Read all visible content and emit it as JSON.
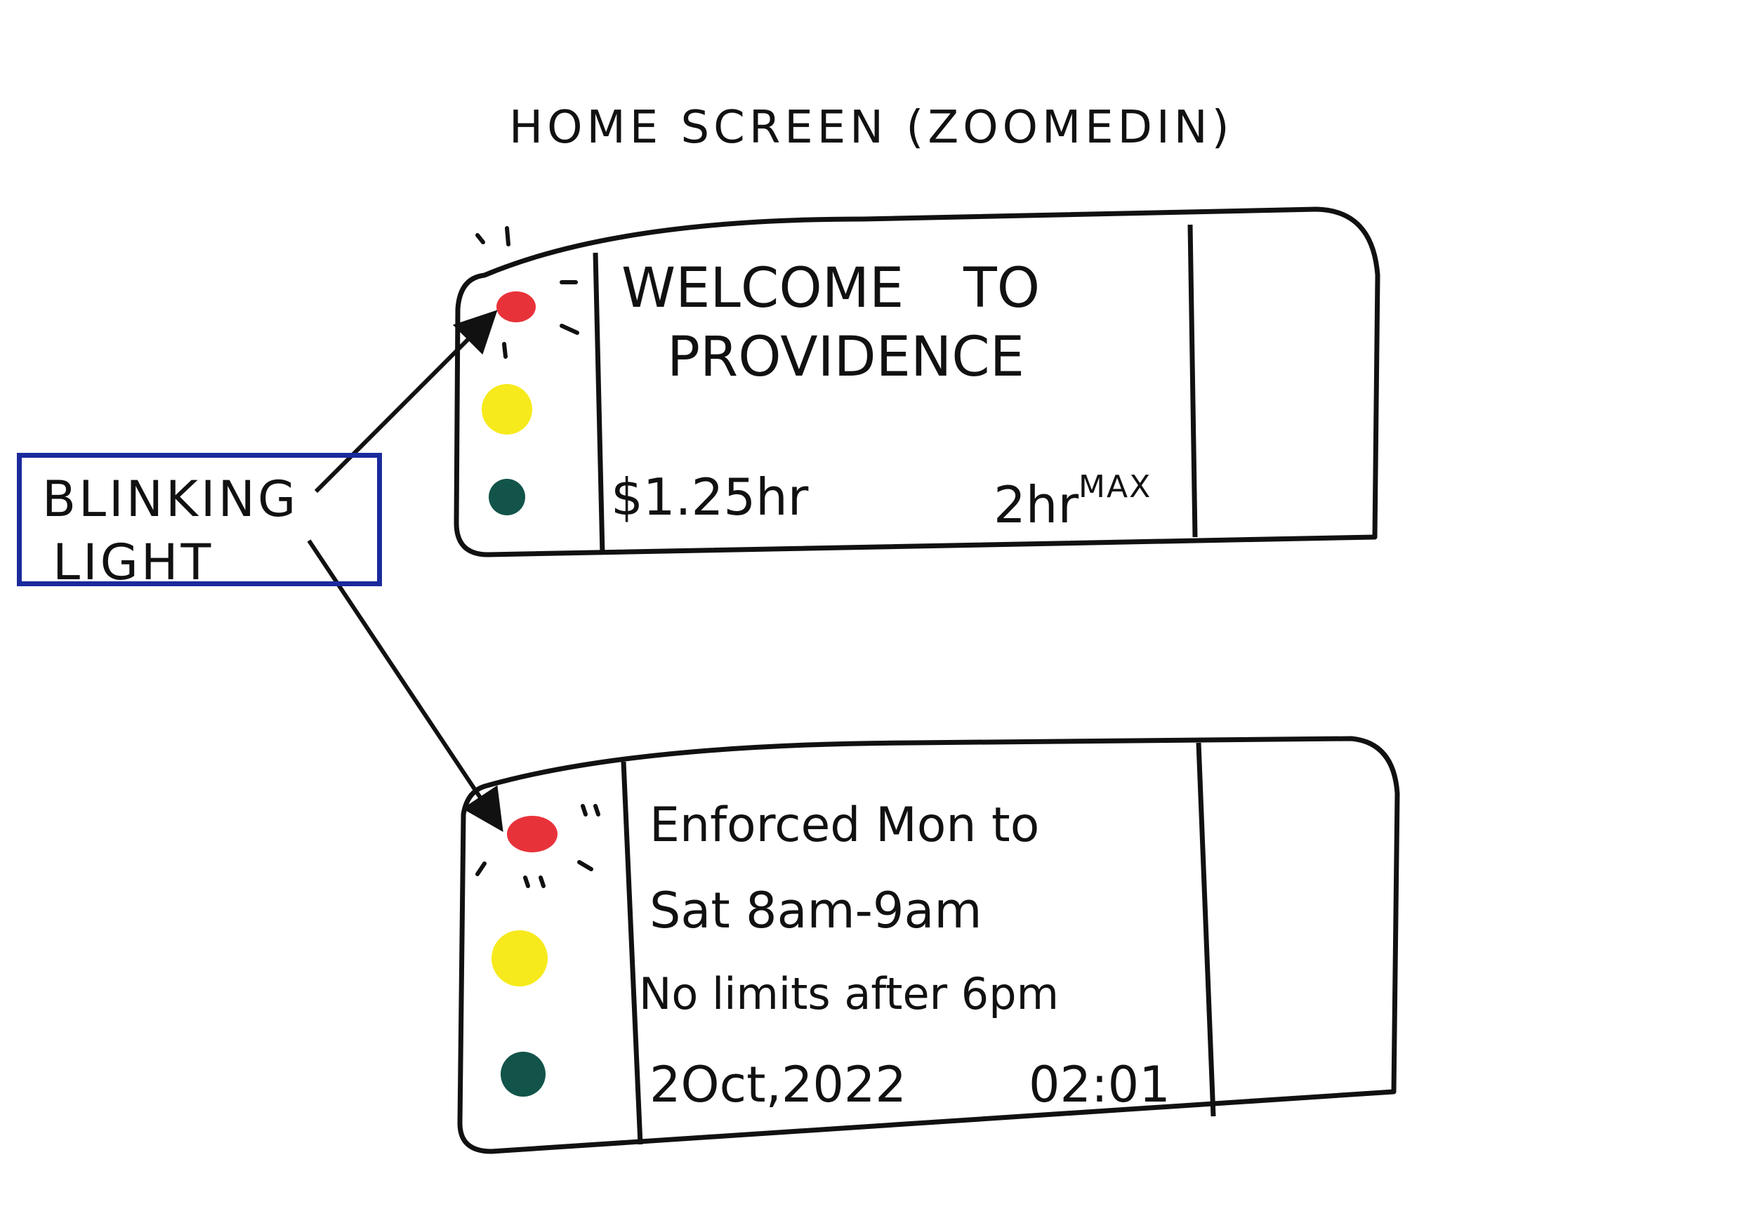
{
  "page": {
    "title": "HOME SCREEN (ZOOMEDIN)"
  },
  "annotation": {
    "label_line1": "BLINKING",
    "label_line2": "LIGHT",
    "box_color": "#1a2a9c"
  },
  "screen1": {
    "line1": "WELCOME TO",
    "line2": "PROVIDENCE",
    "rate": "$1.25hr",
    "limit": "2hr",
    "limit_sup": "MAX"
  },
  "screen2": {
    "line1": "Enforced Mon to",
    "line2": "Sat 8am-9am",
    "line3": "No limits after 6pm",
    "date": "2Oct,2022",
    "time": "02:01"
  },
  "lights": {
    "red": "#e8323a",
    "yellow": "#f6ea1c",
    "green": "#12544a"
  }
}
